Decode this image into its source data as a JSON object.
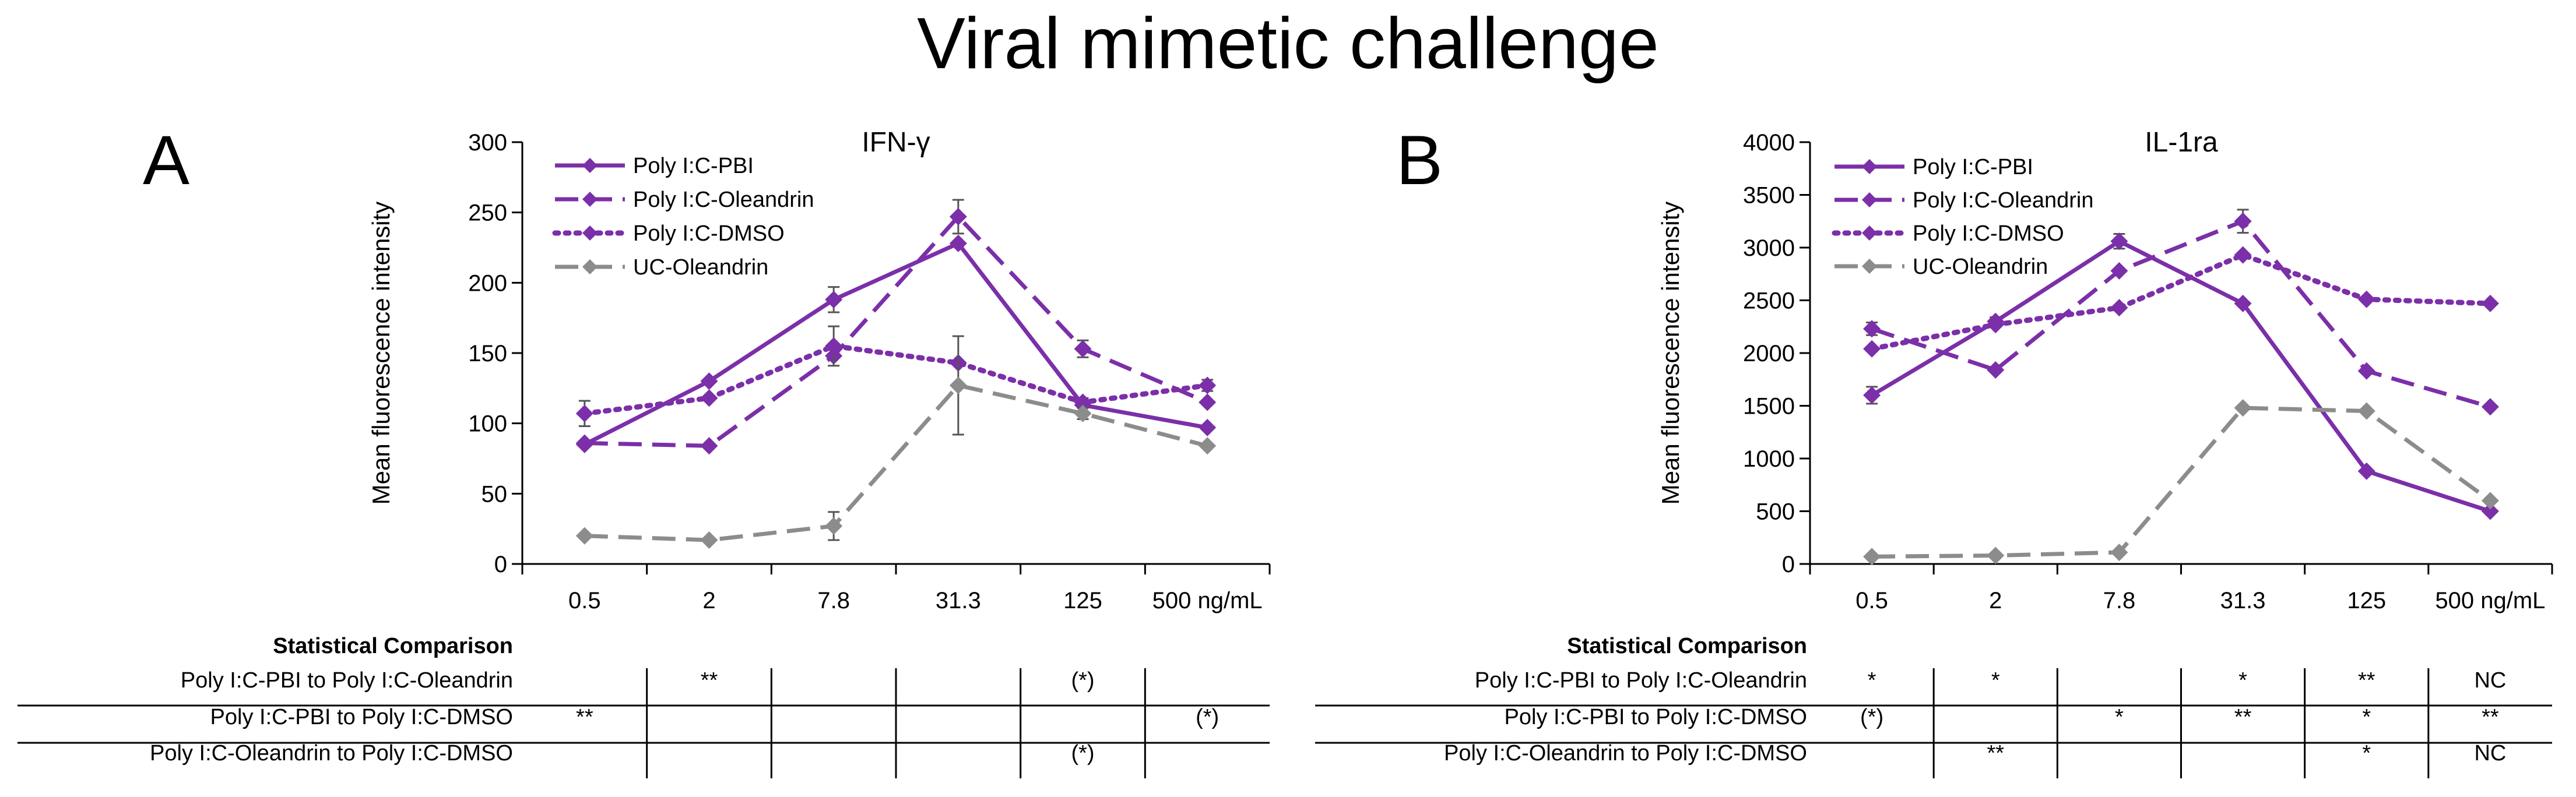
{
  "figure_title": "Viral mimetic challenge",
  "chart_data": [
    {
      "panel": "A",
      "type": "line",
      "title": "IFN-γ",
      "ylabel": "Mean fluorescence intensity",
      "xlabel": "",
      "categories": [
        "0.5",
        "2",
        "7.8",
        "31.3",
        "125",
        "500 ng/mL"
      ],
      "ylim": [
        0,
        300
      ],
      "yticks": [
        0,
        50,
        100,
        150,
        200,
        250,
        300
      ],
      "grid": false,
      "legend_position": "top-left",
      "series": [
        {
          "name": "Poly I:C-PBI",
          "style": "solid",
          "color": "#7b2fa8",
          "values": [
            85,
            130,
            188,
            228,
            113,
            97
          ],
          "errors": [
            0,
            0,
            9,
            0,
            5,
            0
          ]
        },
        {
          "name": "Poly I:C-Oleandrin",
          "style": "dashed",
          "color": "#7b2fa8",
          "values": [
            86,
            84,
            148,
            247,
            153,
            115
          ],
          "errors": [
            0,
            0,
            0,
            12,
            6,
            0
          ]
        },
        {
          "name": "Poly I:C-DMSO",
          "style": "dotted",
          "color": "#7b2fa8",
          "values": [
            107,
            118,
            155,
            143,
            115,
            127
          ],
          "errors": [
            9,
            0,
            14,
            0,
            0,
            4
          ]
        },
        {
          "name": "UC-Oleandrin",
          "style": "dashed",
          "color": "#8c8c8c",
          "values": [
            20,
            17,
            27,
            127,
            107,
            84
          ],
          "errors": [
            0,
            0,
            10,
            35,
            4,
            0
          ]
        }
      ],
      "stats": {
        "heading": "Statistical Comparison",
        "rows": [
          {
            "label": "Poly I:C-PBI to Poly I:C-Oleandrin",
            "cells": [
              "",
              "**",
              "",
              "",
              "(*)",
              ""
            ]
          },
          {
            "label": "Poly I:C-PBI to Poly I:C-DMSO",
            "cells": [
              "**",
              "",
              "",
              "",
              "",
              "(*)"
            ]
          },
          {
            "label": "Poly I:C-Oleandrin to Poly I:C-DMSO",
            "cells": [
              "",
              "",
              "",
              "",
              "(*)",
              ""
            ]
          }
        ]
      }
    },
    {
      "panel": "B",
      "type": "line",
      "title": "IL-1ra",
      "ylabel": "Mean fluorescence intensity",
      "xlabel": "",
      "categories": [
        "0.5",
        "2",
        "7.8",
        "31.3",
        "125",
        "500 ng/mL"
      ],
      "ylim": [
        0,
        4000
      ],
      "yticks": [
        0,
        500,
        1000,
        1500,
        2000,
        2500,
        3000,
        3500,
        4000
      ],
      "grid": false,
      "legend_position": "top-left",
      "series": [
        {
          "name": "Poly I:C-PBI",
          "style": "solid",
          "color": "#7b2fa8",
          "values": [
            1600,
            2300,
            3060,
            2470,
            880,
            500
          ],
          "errors": [
            80,
            40,
            70,
            0,
            0,
            0
          ]
        },
        {
          "name": "Poly I:C-Oleandrin",
          "style": "dashed",
          "color": "#7b2fa8",
          "values": [
            2230,
            1840,
            2780,
            3250,
            1830,
            1490
          ],
          "errors": [
            60,
            0,
            0,
            110,
            0,
            0
          ]
        },
        {
          "name": "Poly I:C-DMSO",
          "style": "dotted",
          "color": "#7b2fa8",
          "values": [
            2040,
            2270,
            2430,
            2930,
            2510,
            2470
          ],
          "errors": [
            0,
            0,
            0,
            0,
            0,
            0
          ]
        },
        {
          "name": "UC-Oleandrin",
          "style": "dashed",
          "color": "#8c8c8c",
          "values": [
            70,
            80,
            110,
            1480,
            1450,
            600
          ],
          "errors": [
            0,
            0,
            0,
            0,
            0,
            0
          ]
        }
      ],
      "stats": {
        "heading": "Statistical Comparison",
        "rows": [
          {
            "label": "Poly I:C-PBI to Poly I:C-Oleandrin",
            "cells": [
              "*",
              "*",
              "",
              "*",
              "**",
              "NC"
            ]
          },
          {
            "label": "Poly I:C-PBI to Poly I:C-DMSO",
            "cells": [
              "(*)",
              "",
              "*",
              "**",
              "*",
              "**"
            ]
          },
          {
            "label": "Poly I:C-Oleandrin to Poly I:C-DMSO",
            "cells": [
              "",
              "**",
              "",
              "",
              "*",
              "NC"
            ]
          }
        ]
      }
    }
  ]
}
